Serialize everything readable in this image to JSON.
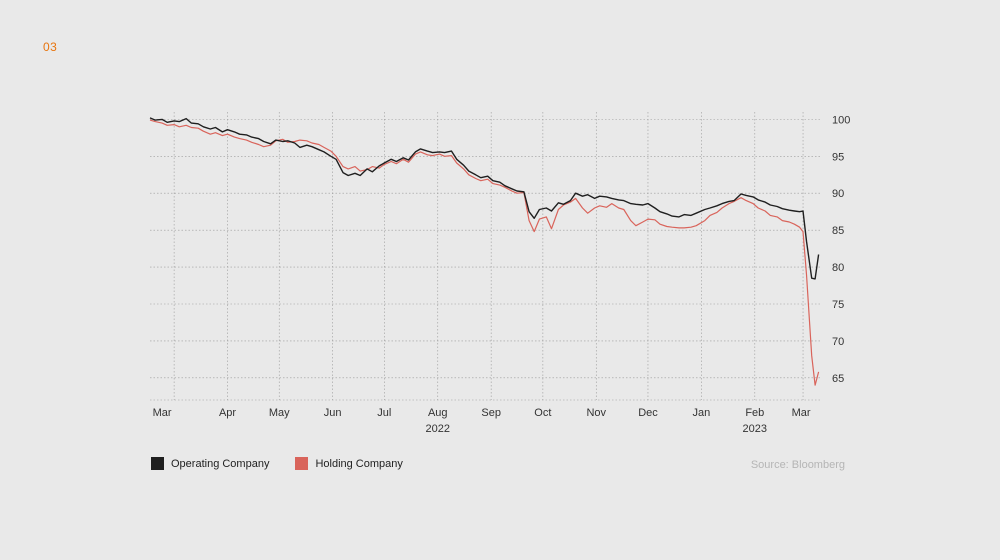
{
  "page_number": "03",
  "source": "Source: Bloomberg",
  "colors": {
    "accent": "#e8750f",
    "operating": "#1f1f1f",
    "holding": "#d9645b",
    "grid": "#9a9a9a",
    "background": "#e9e9e9"
  },
  "chart_data": {
    "type": "line",
    "y_axis_position": "right",
    "ylim": [
      62,
      101
    ],
    "yticks": [
      100,
      95,
      90,
      85,
      80,
      75,
      70,
      65
    ],
    "grid": true,
    "legend_position": "bottom-left",
    "x_ticks": [
      {
        "label": "Mar",
        "date": "2022-03-01"
      },
      {
        "label": "Apr",
        "date": "2022-04-01"
      },
      {
        "label": "May",
        "date": "2022-05-01"
      },
      {
        "label": "Jun",
        "date": "2022-06-01"
      },
      {
        "label": "Jul",
        "date": "2022-07-01"
      },
      {
        "label": "Aug",
        "date": "2022-08-01"
      },
      {
        "label": "Sep",
        "date": "2022-09-01"
      },
      {
        "label": "Oct",
        "date": "2022-10-01"
      },
      {
        "label": "Nov",
        "date": "2022-11-01"
      },
      {
        "label": "Dec",
        "date": "2022-12-01"
      },
      {
        "label": "Jan",
        "date": "2023-01-01"
      },
      {
        "label": "Feb",
        "date": "2023-02-01"
      },
      {
        "label": "Mar",
        "date": "2023-03-01"
      }
    ],
    "year_labels": [
      {
        "label": "2022",
        "date": "2022-08-01"
      },
      {
        "label": "2023",
        "date": "2023-02-01"
      }
    ],
    "series": [
      {
        "name": "Operating Company",
        "color": "#1f1f1f",
        "points": [
          [
            "2022-02-15",
            100.2
          ],
          [
            "2022-02-18",
            99.9
          ],
          [
            "2022-02-22",
            100.0
          ],
          [
            "2022-02-25",
            99.6
          ],
          [
            "2022-03-01",
            99.8
          ],
          [
            "2022-03-04",
            99.7
          ],
          [
            "2022-03-08",
            100.1
          ],
          [
            "2022-03-11",
            99.5
          ],
          [
            "2022-03-15",
            99.4
          ],
          [
            "2022-03-18",
            99.0
          ],
          [
            "2022-03-22",
            98.7
          ],
          [
            "2022-03-25",
            98.9
          ],
          [
            "2022-03-29",
            98.3
          ],
          [
            "2022-04-01",
            98.6
          ],
          [
            "2022-04-05",
            98.3
          ],
          [
            "2022-04-08",
            98.0
          ],
          [
            "2022-04-12",
            97.9
          ],
          [
            "2022-04-15",
            97.6
          ],
          [
            "2022-04-19",
            97.4
          ],
          [
            "2022-04-22",
            97.0
          ],
          [
            "2022-04-26",
            96.7
          ],
          [
            "2022-04-29",
            97.2
          ],
          [
            "2022-05-03",
            97.0
          ],
          [
            "2022-05-06",
            97.1
          ],
          [
            "2022-05-10",
            96.8
          ],
          [
            "2022-05-13",
            96.2
          ],
          [
            "2022-05-17",
            96.5
          ],
          [
            "2022-05-20",
            96.3
          ],
          [
            "2022-05-24",
            95.9
          ],
          [
            "2022-05-27",
            95.6
          ],
          [
            "2022-05-31",
            95.0
          ],
          [
            "2022-06-03",
            94.6
          ],
          [
            "2022-06-07",
            92.8
          ],
          [
            "2022-06-10",
            92.4
          ],
          [
            "2022-06-14",
            92.7
          ],
          [
            "2022-06-17",
            92.4
          ],
          [
            "2022-06-21",
            93.3
          ],
          [
            "2022-06-24",
            92.9
          ],
          [
            "2022-06-28",
            93.7
          ],
          [
            "2022-07-01",
            94.1
          ],
          [
            "2022-07-05",
            94.6
          ],
          [
            "2022-07-08",
            94.3
          ],
          [
            "2022-07-12",
            94.8
          ],
          [
            "2022-07-15",
            94.5
          ],
          [
            "2022-07-19",
            95.6
          ],
          [
            "2022-07-22",
            96.0
          ],
          [
            "2022-07-26",
            95.7
          ],
          [
            "2022-07-29",
            95.5
          ],
          [
            "2022-08-02",
            95.6
          ],
          [
            "2022-08-05",
            95.5
          ],
          [
            "2022-08-09",
            95.7
          ],
          [
            "2022-08-12",
            94.6
          ],
          [
            "2022-08-16",
            93.8
          ],
          [
            "2022-08-19",
            93.0
          ],
          [
            "2022-08-23",
            92.5
          ],
          [
            "2022-08-26",
            92.1
          ],
          [
            "2022-08-30",
            92.3
          ],
          [
            "2022-09-02",
            91.7
          ],
          [
            "2022-09-06",
            91.5
          ],
          [
            "2022-09-09",
            91.0
          ],
          [
            "2022-09-13",
            90.6
          ],
          [
            "2022-09-16",
            90.3
          ],
          [
            "2022-09-20",
            90.2
          ],
          [
            "2022-09-23",
            87.5
          ],
          [
            "2022-09-26",
            86.6
          ],
          [
            "2022-09-29",
            87.8
          ],
          [
            "2022-10-03",
            88.0
          ],
          [
            "2022-10-06",
            87.6
          ],
          [
            "2022-10-10",
            88.7
          ],
          [
            "2022-10-13",
            88.5
          ],
          [
            "2022-10-17",
            89.0
          ],
          [
            "2022-10-20",
            90.0
          ],
          [
            "2022-10-24",
            89.6
          ],
          [
            "2022-10-27",
            89.8
          ],
          [
            "2022-10-31",
            89.3
          ],
          [
            "2022-11-03",
            89.6
          ],
          [
            "2022-11-07",
            89.5
          ],
          [
            "2022-11-10",
            89.3
          ],
          [
            "2022-11-14",
            89.1
          ],
          [
            "2022-11-17",
            89.0
          ],
          [
            "2022-11-21",
            88.6
          ],
          [
            "2022-11-24",
            88.5
          ],
          [
            "2022-11-28",
            88.4
          ],
          [
            "2022-12-01",
            88.6
          ],
          [
            "2022-12-05",
            88.0
          ],
          [
            "2022-12-08",
            87.5
          ],
          [
            "2022-12-12",
            87.2
          ],
          [
            "2022-12-15",
            86.9
          ],
          [
            "2022-12-19",
            86.8
          ],
          [
            "2022-12-22",
            87.1
          ],
          [
            "2022-12-26",
            87.0
          ],
          [
            "2022-12-29",
            87.3
          ],
          [
            "2023-01-03",
            87.8
          ],
          [
            "2023-01-06",
            88.0
          ],
          [
            "2023-01-10",
            88.3
          ],
          [
            "2023-01-13",
            88.6
          ],
          [
            "2023-01-17",
            88.9
          ],
          [
            "2023-01-20",
            89.0
          ],
          [
            "2023-01-24",
            89.9
          ],
          [
            "2023-01-27",
            89.7
          ],
          [
            "2023-01-31",
            89.5
          ],
          [
            "2023-02-03",
            89.1
          ],
          [
            "2023-02-07",
            88.8
          ],
          [
            "2023-02-10",
            88.4
          ],
          [
            "2023-02-14",
            88.2
          ],
          [
            "2023-02-17",
            87.9
          ],
          [
            "2023-02-21",
            87.7
          ],
          [
            "2023-02-24",
            87.6
          ],
          [
            "2023-02-27",
            87.5
          ],
          [
            "2023-03-01",
            87.6
          ],
          [
            "2023-03-03",
            83.5
          ],
          [
            "2023-03-06",
            78.5
          ],
          [
            "2023-03-08",
            78.4
          ],
          [
            "2023-03-10",
            81.7
          ]
        ]
      },
      {
        "name": "Holding Company",
        "color": "#d9645b",
        "points": [
          [
            "2022-02-15",
            99.9
          ],
          [
            "2022-02-18",
            99.7
          ],
          [
            "2022-02-22",
            99.5
          ],
          [
            "2022-02-25",
            99.2
          ],
          [
            "2022-03-01",
            99.3
          ],
          [
            "2022-03-04",
            99.0
          ],
          [
            "2022-03-08",
            99.2
          ],
          [
            "2022-03-11",
            98.9
          ],
          [
            "2022-03-15",
            98.8
          ],
          [
            "2022-03-18",
            98.4
          ],
          [
            "2022-03-22",
            98.0
          ],
          [
            "2022-03-25",
            98.2
          ],
          [
            "2022-03-29",
            97.8
          ],
          [
            "2022-04-01",
            98.0
          ],
          [
            "2022-04-05",
            97.6
          ],
          [
            "2022-04-08",
            97.4
          ],
          [
            "2022-04-12",
            97.2
          ],
          [
            "2022-04-15",
            96.9
          ],
          [
            "2022-04-19",
            96.6
          ],
          [
            "2022-04-22",
            96.3
          ],
          [
            "2022-04-26",
            96.5
          ],
          [
            "2022-04-29",
            97.1
          ],
          [
            "2022-05-03",
            97.3
          ],
          [
            "2022-05-06",
            96.9
          ],
          [
            "2022-05-10",
            97.0
          ],
          [
            "2022-05-13",
            97.2
          ],
          [
            "2022-05-17",
            97.1
          ],
          [
            "2022-05-20",
            96.8
          ],
          [
            "2022-05-24",
            96.6
          ],
          [
            "2022-05-27",
            96.2
          ],
          [
            "2022-05-31",
            95.7
          ],
          [
            "2022-06-03",
            95.0
          ],
          [
            "2022-06-07",
            93.6
          ],
          [
            "2022-06-10",
            93.3
          ],
          [
            "2022-06-14",
            93.6
          ],
          [
            "2022-06-17",
            93.0
          ],
          [
            "2022-06-21",
            93.2
          ],
          [
            "2022-06-24",
            93.6
          ],
          [
            "2022-06-28",
            93.4
          ],
          [
            "2022-07-01",
            93.9
          ],
          [
            "2022-07-05",
            94.3
          ],
          [
            "2022-07-08",
            94.0
          ],
          [
            "2022-07-12",
            94.6
          ],
          [
            "2022-07-15",
            94.2
          ],
          [
            "2022-07-19",
            95.3
          ],
          [
            "2022-07-22",
            95.6
          ],
          [
            "2022-07-26",
            95.2
          ],
          [
            "2022-07-29",
            95.1
          ],
          [
            "2022-08-02",
            95.3
          ],
          [
            "2022-08-05",
            95.0
          ],
          [
            "2022-08-09",
            95.1
          ],
          [
            "2022-08-12",
            94.1
          ],
          [
            "2022-08-16",
            93.3
          ],
          [
            "2022-08-19",
            92.5
          ],
          [
            "2022-08-23",
            92.0
          ],
          [
            "2022-08-26",
            91.7
          ],
          [
            "2022-08-30",
            91.9
          ],
          [
            "2022-09-02",
            91.3
          ],
          [
            "2022-09-06",
            91.1
          ],
          [
            "2022-09-09",
            90.8
          ],
          [
            "2022-09-13",
            90.3
          ],
          [
            "2022-09-16",
            90.0
          ],
          [
            "2022-09-20",
            90.1
          ],
          [
            "2022-09-23",
            86.3
          ],
          [
            "2022-09-26",
            84.8
          ],
          [
            "2022-09-29",
            86.5
          ],
          [
            "2022-10-03",
            86.8
          ],
          [
            "2022-10-06",
            85.2
          ],
          [
            "2022-10-10",
            87.8
          ],
          [
            "2022-10-13",
            88.4
          ],
          [
            "2022-10-17",
            88.8
          ],
          [
            "2022-10-20",
            89.3
          ],
          [
            "2022-10-24",
            88.0
          ],
          [
            "2022-10-27",
            87.3
          ],
          [
            "2022-10-31",
            88.0
          ],
          [
            "2022-11-03",
            88.3
          ],
          [
            "2022-11-07",
            88.1
          ],
          [
            "2022-11-10",
            88.6
          ],
          [
            "2022-11-14",
            88.0
          ],
          [
            "2022-11-17",
            87.8
          ],
          [
            "2022-11-21",
            86.3
          ],
          [
            "2022-11-24",
            85.6
          ],
          [
            "2022-11-28",
            86.1
          ],
          [
            "2022-12-01",
            86.5
          ],
          [
            "2022-12-05",
            86.4
          ],
          [
            "2022-12-08",
            85.8
          ],
          [
            "2022-12-12",
            85.5
          ],
          [
            "2022-12-15",
            85.4
          ],
          [
            "2022-12-19",
            85.3
          ],
          [
            "2022-12-22",
            85.3
          ],
          [
            "2022-12-26",
            85.4
          ],
          [
            "2022-12-29",
            85.6
          ],
          [
            "2023-01-03",
            86.3
          ],
          [
            "2023-01-06",
            87.0
          ],
          [
            "2023-01-10",
            87.4
          ],
          [
            "2023-01-13",
            88.0
          ],
          [
            "2023-01-17",
            88.6
          ],
          [
            "2023-01-20",
            88.9
          ],
          [
            "2023-01-24",
            89.4
          ],
          [
            "2023-01-27",
            89.0
          ],
          [
            "2023-01-31",
            88.6
          ],
          [
            "2023-02-03",
            88.0
          ],
          [
            "2023-02-07",
            87.6
          ],
          [
            "2023-02-10",
            87.0
          ],
          [
            "2023-02-14",
            86.8
          ],
          [
            "2023-02-17",
            86.3
          ],
          [
            "2023-02-21",
            86.1
          ],
          [
            "2023-02-24",
            85.8
          ],
          [
            "2023-02-27",
            85.4
          ],
          [
            "2023-03-01",
            84.8
          ],
          [
            "2023-03-03",
            79.0
          ],
          [
            "2023-03-06",
            68.0
          ],
          [
            "2023-03-08",
            64.0
          ],
          [
            "2023-03-10",
            65.8
          ]
        ]
      }
    ]
  }
}
